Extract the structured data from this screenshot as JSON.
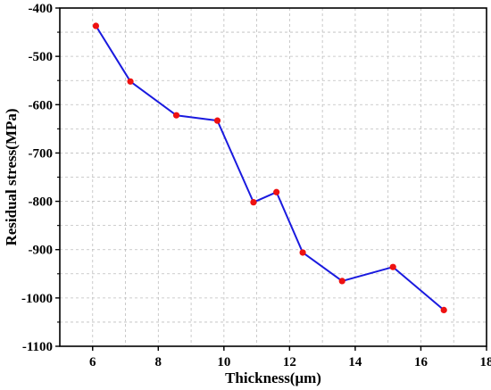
{
  "chart_data": {
    "type": "line",
    "xlabel": "Thickness(μm)",
    "ylabel": "Residual stress(MPa)",
    "xlim": [
      5,
      18
    ],
    "ylim": [
      -1100,
      -400
    ],
    "xticks": [
      6,
      8,
      10,
      12,
      14,
      16,
      18
    ],
    "xtick_labels": [
      "6",
      "8",
      "10",
      "12",
      "14",
      "16",
      "18"
    ],
    "yticks": [
      -400,
      -500,
      -600,
      -700,
      -800,
      -900,
      -1000,
      -1100
    ],
    "ytick_labels": [
      "-400",
      "-500",
      "-600",
      "-700",
      "-800",
      "-900",
      "-1000",
      "-1100"
    ],
    "grid": true,
    "colors": {
      "line": "#1a1adf",
      "marker": "#ee1111"
    },
    "series": [
      {
        "x": [
          6.1,
          7.15,
          8.55,
          9.8,
          10.9,
          11.6,
          12.4,
          13.6,
          15.15,
          16.7
        ],
        "y": [
          -437,
          -552,
          -622,
          -633,
          -802,
          -781,
          -906,
          -965,
          -936,
          -1025
        ]
      }
    ]
  }
}
